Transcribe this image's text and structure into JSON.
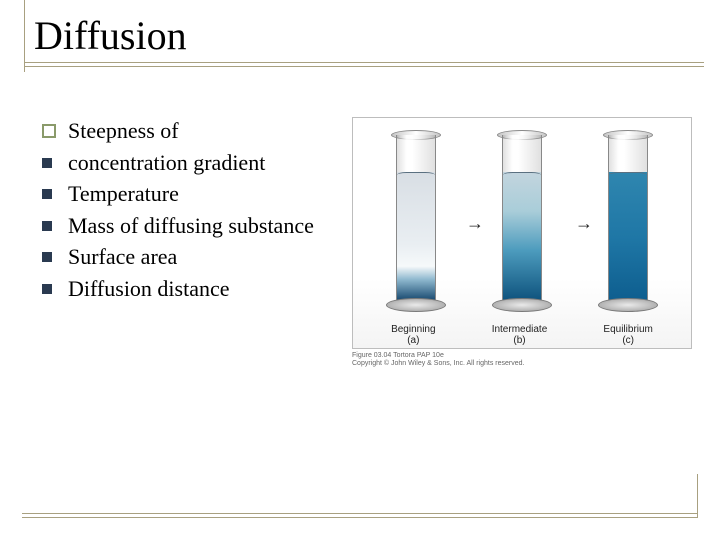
{
  "title": "Diffusion",
  "bullets": [
    {
      "icon": "outline",
      "text": "Steepness of"
    },
    {
      "icon": "fill",
      "text": "concentration gradient"
    },
    {
      "icon": "fill",
      "text": "Temperature"
    },
    {
      "icon": "fill",
      "text": "Mass of diffusing substance"
    },
    {
      "icon": "fill",
      "text": "Surface area"
    },
    {
      "icon": "fill",
      "text": "Diffusion distance"
    }
  ],
  "figure": {
    "frame_border": "#bdbdbd",
    "liquid_height_pct": 78,
    "tubes": [
      {
        "label": "Beginning",
        "sub": "(a)",
        "gradient_stops": [
          {
            "pct": 0,
            "color": "#d8dee4"
          },
          {
            "pct": 55,
            "color": "#e9eef2"
          },
          {
            "pct": 72,
            "color": "#f6f9fa"
          },
          {
            "pct": 82,
            "color": "#8fb9cf"
          },
          {
            "pct": 100,
            "color": "#083a63"
          }
        ]
      },
      {
        "label": "Intermediate",
        "sub": "(b)",
        "gradient_stops": [
          {
            "pct": 0,
            "color": "#c3d5de"
          },
          {
            "pct": 30,
            "color": "#a9cdd9"
          },
          {
            "pct": 60,
            "color": "#4c9bbd"
          },
          {
            "pct": 100,
            "color": "#0b4f7a"
          }
        ]
      },
      {
        "label": "Equilibrium",
        "sub": "(c)",
        "gradient_stops": [
          {
            "pct": 0,
            "color": "#2f86af"
          },
          {
            "pct": 50,
            "color": "#1f77a6"
          },
          {
            "pct": 100,
            "color": "#0d5d8e"
          }
        ]
      }
    ],
    "arrow_glyph": "→",
    "credit_line1": "Figure 03.04  Tortora  PAP 10e",
    "credit_line2": "Copyright © John Wiley & Sons, Inc. All rights reserved."
  },
  "colors": {
    "rule": "#a8a080",
    "bullet_outline": "#8a9a6a",
    "bullet_fill": "#2a3a50",
    "text": "#000000"
  }
}
